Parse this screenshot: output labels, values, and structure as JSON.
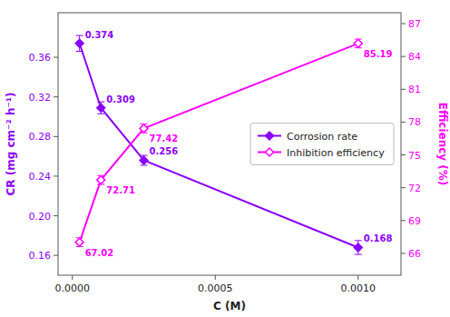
{
  "chart_data": {
    "type": "line",
    "x_label": "C (M)",
    "y_label": "CR (mg cm⁻² h⁻¹)",
    "y2_label": "Efficiency (%)",
    "x": [
      2.5e-05,
      0.0001,
      0.00025,
      0.001
    ],
    "xlim": [
      -5e-05,
      0.00115
    ],
    "xticks": [
      {
        "value": 0.0,
        "label": "0.0000"
      },
      {
        "value": 0.0005,
        "label": "0.0005"
      },
      {
        "value": 0.001,
        "label": "0.0010"
      }
    ],
    "ylim": [
      0.14,
      0.405
    ],
    "yticks": [
      0.16,
      {
        "value": 0.2,
        "label": "0.20"
      },
      0.24,
      0.28,
      0.32,
      0.36
    ],
    "y2lim": [
      64,
      88
    ],
    "y2ticks": [
      66,
      69,
      72,
      75,
      78,
      81,
      84,
      87
    ],
    "series": [
      {
        "name": "Corrosion rate",
        "color": "#8B00FF",
        "marker": "diamond",
        "values": [
          0.374,
          0.309,
          0.256,
          0.168
        ],
        "errors": [
          0.008,
          0.006,
          0.005,
          0.007
        ]
      },
      {
        "name": "Inhibition efficiency",
        "color": "#FF00FF",
        "marker": "diamond",
        "axis": "y2",
        "values": [
          67.02,
          72.71,
          77.42,
          85.19
        ],
        "errors": [
          0.4,
          0.4,
          0.4,
          0.4
        ]
      }
    ],
    "data_labels": true,
    "legend": "right",
    "grid": false
  }
}
